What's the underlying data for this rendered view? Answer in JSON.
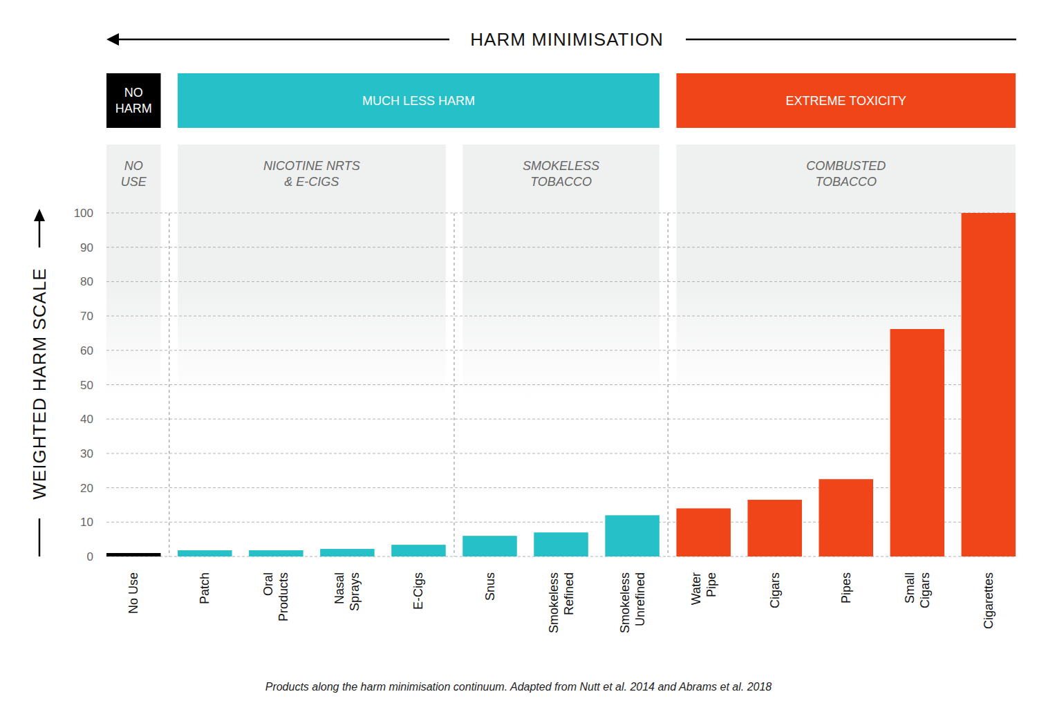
{
  "chart_data": {
    "type": "bar",
    "title": "HARM MINIMISATION",
    "ylabel": "WEIGHTED HARM SCALE",
    "caption": "Products along the harm minimisation continuum. Adapted from Nutt et al. 2014 and Abrams et al. 2018",
    "categories": [
      "No Use",
      "Patch",
      "Oral\nProducts",
      "Nasal\nSprays",
      "E-Cigs",
      "Snus",
      "Smokeless\nRefined",
      "Smokeless\nUnrefined",
      "Water\nPipe",
      "Cigars",
      "Pipes",
      "Small\nCigars",
      "Cigarettes"
    ],
    "values": [
      1,
      1.8,
      1.8,
      2.2,
      3.4,
      6,
      7,
      12,
      14,
      16.5,
      22.5,
      66.2,
      100
    ],
    "colors": [
      "#000000",
      "#26c1c8",
      "#26c1c8",
      "#26c1c8",
      "#26c1c8",
      "#26c1c8",
      "#26c1c8",
      "#26c1c8",
      "#ef4519",
      "#ef4519",
      "#ef4519",
      "#ef4519",
      "#ef4519"
    ],
    "ylim": [
      0,
      100
    ],
    "yticks": [
      0,
      10,
      20,
      30,
      40,
      50,
      60,
      70,
      80,
      90,
      100
    ],
    "grid": true,
    "groups": [
      {
        "label": "NO\nHARM",
        "color": "#000000",
        "subgroups": [
          {
            "label": "NO\nUSE",
            "categories": [
              "No Use"
            ]
          }
        ]
      },
      {
        "label": "MUCH LESS HARM",
        "color": "#26c1c8",
        "subgroups": [
          {
            "label": "NICOTINE NRTS\n& E-CIGS",
            "categories": [
              "Patch",
              "Oral\nProducts",
              "Nasal\nSprays",
              "E-Cigs"
            ]
          },
          {
            "label": "SMOKELESS\nTOBACCO",
            "categories": [
              "Snus",
              "Smokeless\nRefined",
              "Smokeless\nUnrefined"
            ]
          }
        ]
      },
      {
        "label": "EXTREME TOXICITY",
        "color": "#ef4519",
        "subgroups": [
          {
            "label": "COMBUSTED\nTOBACCO",
            "categories": [
              "Water\nPipe",
              "Cigars",
              "Pipes",
              "Small\nCigars",
              "Cigarettes"
            ]
          }
        ]
      }
    ]
  }
}
